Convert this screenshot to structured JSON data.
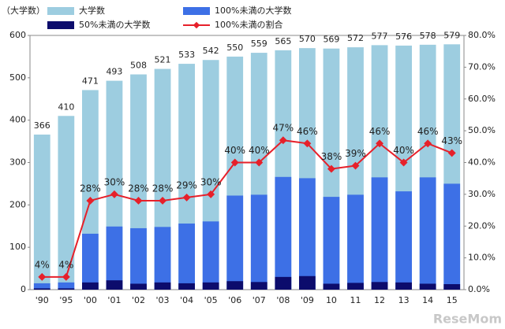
{
  "chart_data": {
    "type": "bar",
    "y_label": "（大学数）",
    "watermark": "ReseMom",
    "categories": [
      "'90",
      "'95",
      "'00",
      "'01",
      "'02",
      "'03",
      "'04",
      "'05",
      "'06",
      "'07",
      "'08",
      "'09",
      "10",
      "11",
      "12",
      "13",
      "14",
      "15"
    ],
    "series": [
      {
        "name": "大学数",
        "color": "#9dcde0",
        "values": [
          366,
          410,
          471,
          493,
          508,
          521,
          533,
          542,
          550,
          559,
          565,
          570,
          569,
          572,
          577,
          576,
          578,
          579
        ]
      },
      {
        "name": "100%未満の大学数",
        "color": "#3d70e6",
        "values": [
          15,
          17,
          132,
          149,
          145,
          148,
          156,
          161,
          222,
          224,
          266,
          263,
          219,
          224,
          265,
          232,
          265,
          250
        ]
      },
      {
        "name": "50%未満の大学数",
        "color": "#0c0c6c",
        "values": [
          3,
          3,
          17,
          22,
          14,
          17,
          15,
          17,
          20,
          18,
          30,
          32,
          14,
          16,
          18,
          17,
          14,
          13
        ]
      },
      {
        "name": "100%未満の割合",
        "color": "#e6202a",
        "type": "line",
        "axis": "y2",
        "values": [
          4,
          4,
          28,
          30,
          28,
          28,
          29,
          30,
          40,
          40,
          47,
          46,
          38,
          39,
          46,
          40,
          46,
          43
        ],
        "value_labels": [
          "4%",
          "4%",
          "28%",
          "30%",
          "28%",
          "28%",
          "29%",
          "30%",
          "40%",
          "40%",
          "47%",
          "46%",
          "38%",
          "39%",
          "46%",
          "40%",
          "46%",
          "43%"
        ]
      }
    ],
    "ylim": [
      0,
      600
    ],
    "yticks": [
      0,
      100,
      200,
      300,
      400,
      500,
      600
    ],
    "y2lim": [
      0,
      80
    ],
    "y2ticks": [
      {
        "value": 0,
        "label": "0.0%"
      },
      {
        "value": 10,
        "label": "10.0%"
      },
      {
        "value": 20,
        "label": "20.0%"
      },
      {
        "value": 30,
        "label": "30.0%"
      },
      {
        "value": 40,
        "label": "40.0%"
      },
      {
        "value": 50,
        "label": "50.0%"
      },
      {
        "value": 60,
        "label": "60.0%"
      },
      {
        "value": 70,
        "label": "70.0%"
      },
      {
        "value": 80,
        "label": "80.0%"
      }
    ]
  }
}
